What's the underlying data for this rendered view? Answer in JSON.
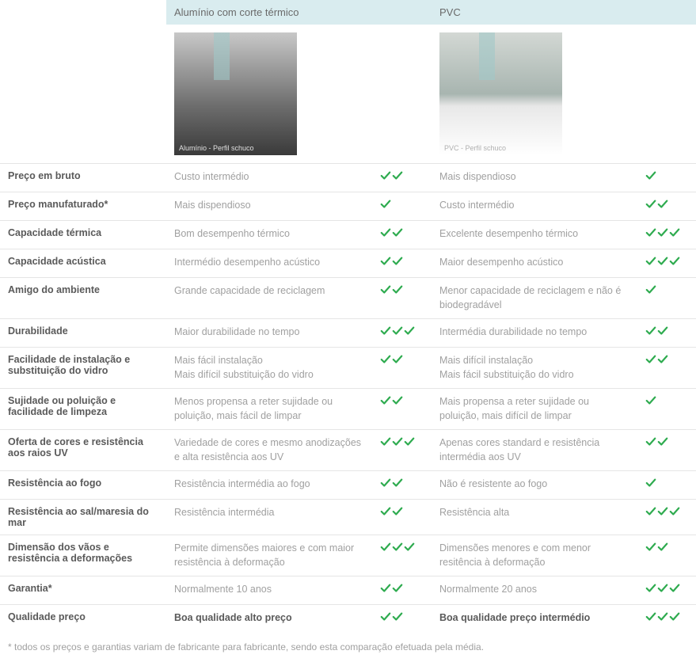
{
  "colors": {
    "header_bg": "#d9ecef",
    "border": "#e5e5e5",
    "label_text": "#5a5a5a",
    "value_text": "#a0a0a0",
    "check_green": "#2eab4f"
  },
  "headers": {
    "col1": "Alumínio com corte térmico",
    "col2": "PVC"
  },
  "images": {
    "aluminio_caption": "Alumínio - Perfil schuco",
    "pvc_caption": "PVC - Perfil schuco"
  },
  "rows": [
    {
      "label": "Preço em bruto",
      "val1": "Custo intermédio",
      "chk1": 2,
      "val2": "Mais dispendioso",
      "chk2": 1
    },
    {
      "label": "Preço manufaturado*",
      "val1": "Mais dispendioso",
      "chk1": 1,
      "val2": "Custo intermédio",
      "chk2": 2
    },
    {
      "label": "Capacidade térmica",
      "val1": "Bom desempenho térmico",
      "chk1": 2,
      "val2": "Excelente desempenho térmico",
      "chk2": 3
    },
    {
      "label": "Capacidade acústica",
      "val1": "Intermédio desempenho acústico",
      "chk1": 2,
      "val2": "Maior desempenho acústico",
      "chk2": 3
    },
    {
      "label": "Amigo do ambiente",
      "val1": "Grande capacidade de reciclagem",
      "chk1": 2,
      "val2": "Menor capacidade de reciclagem e não é biodegradável",
      "chk2": 1
    },
    {
      "label": "Durabilidade",
      "val1": "Maior durabilidade no tempo",
      "chk1": 3,
      "val2": "Intermédia durabilidade no tempo",
      "chk2": 2
    },
    {
      "label": "Facilidade de instalação e substituição do vidro",
      "val1": "Mais fácil instalação\nMais difícil substituição do vidro",
      "chk1": 2,
      "val2": "Mais difícil instalação\nMais fácil substituição do vidro",
      "chk2": 2
    },
    {
      "label": "Sujidade ou poluição e facilidade de limpeza",
      "val1": "Menos propensa a reter sujidade ou poluição, mais fácil de limpar",
      "chk1": 2,
      "val2": "Mais propensa a reter sujidade ou poluição, mais difícil de limpar",
      "chk2": 1
    },
    {
      "label": "Oferta de cores e resistência aos raios UV",
      "val1": "Variedade de cores e mesmo anodizações e alta resistência aos UV",
      "chk1": 3,
      "val2": "Apenas cores standard e resistência intermédia aos UV",
      "chk2": 2
    },
    {
      "label": "Resistência ao fogo",
      "val1": "Resistência intermédia ao fogo",
      "chk1": 2,
      "val2": "Não é resistente ao fogo",
      "chk2": 1
    },
    {
      "label": "Resistência ao sal/maresia do mar",
      "val1": "Resistência intermédia",
      "chk1": 2,
      "val2": "Resistência alta",
      "chk2": 3
    },
    {
      "label": "Dimensão dos vãos e resistência a deformações",
      "val1": "Permite dimensões maiores e com maior resistência à deformação",
      "chk1": 3,
      "val2": "Dimensões menores e com menor resitência à deformação",
      "chk2": 2
    },
    {
      "label": "Garantia*",
      "val1": "Normalmente 10 anos",
      "chk1": 2,
      "val2": "Normalmente 20 anos",
      "chk2": 3
    },
    {
      "label": "Qualidade preço",
      "val1": "Boa qualidade alto preço",
      "chk1": 2,
      "val2": "Boa qualidade preço intermédio",
      "chk2": 3,
      "bold": true
    }
  ],
  "footnote": "* todos os preços e garantias variam de fabricante para fabricante, sendo esta comparação efetuada pela média."
}
